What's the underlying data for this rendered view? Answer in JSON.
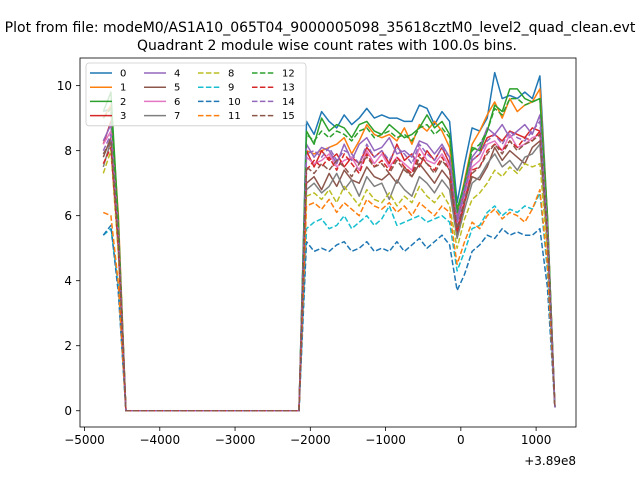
{
  "suptitle": "Plot from file: modeM0/AS1A10_065T04_9000005098_35618cztM0_level2_quad_clean.evt",
  "chart_data": {
    "type": "line",
    "title": "Quadrant 2 module wise count rates with 100.0s bins.",
    "xlabel": "",
    "ylabel": "",
    "offset_text": "+3.89e8",
    "xlim": [
      -5060,
      1530
    ],
    "ylim": [
      -0.5,
      10.85
    ],
    "xticks": [
      -5000,
      -4000,
      -3000,
      -2000,
      -1000,
      0,
      1000
    ],
    "xticklabels": [
      "−5000",
      "−4000",
      "−3000",
      "−2000",
      "−1000",
      "0",
      "1000"
    ],
    "yticks": [
      0,
      2,
      4,
      6,
      8,
      10
    ],
    "yticklabels": [
      "0",
      "2",
      "4",
      "6",
      "8",
      "10"
    ],
    "grid": false,
    "legend_position": "top-left",
    "legend_columns": 4,
    "x": [
      -4750,
      -4650,
      -4550,
      -4450,
      -2150,
      -2050,
      -1950,
      -1850,
      -1750,
      -1650,
      -1550,
      -1450,
      -1350,
      -1250,
      -1150,
      -1050,
      -950,
      -850,
      -750,
      -650,
      -550,
      -450,
      -350,
      -250,
      -150,
      -50,
      50,
      150,
      250,
      350,
      450,
      550,
      650,
      750,
      850,
      950,
      1050,
      1150,
      1250
    ],
    "series": [
      {
        "name": "0",
        "color": "#1f77b4",
        "dash": "solid",
        "values": [
          9.2,
          9.3,
          5.5,
          0,
          0,
          8.9,
          8.5,
          9.2,
          8.9,
          8.7,
          9.1,
          8.8,
          9.0,
          9.3,
          9.0,
          9.1,
          9.0,
          9.0,
          8.9,
          8.9,
          9.4,
          9.3,
          8.8,
          9.2,
          8.9,
          6.4,
          7.6,
          8.7,
          8.6,
          9.0,
          10.4,
          9.6,
          9.7,
          9.6,
          9.8,
          9.6,
          10.3,
          6.0,
          0.1
        ]
      },
      {
        "name": "1",
        "color": "#ff7f0e",
        "dash": "solid",
        "values": [
          9.0,
          9.4,
          6.0,
          0,
          0,
          8.0,
          7.9,
          8.0,
          8.1,
          8.2,
          8.4,
          7.9,
          8.3,
          8.8,
          8.5,
          8.4,
          8.5,
          8.3,
          8.7,
          8.2,
          8.8,
          8.6,
          8.9,
          8.6,
          8.1,
          6.0,
          7.1,
          8.2,
          8.6,
          9.1,
          9.5,
          9.0,
          9.6,
          9.2,
          9.4,
          9.5,
          9.9,
          6.0,
          0.1
        ]
      },
      {
        "name": "2",
        "color": "#2ca02c",
        "dash": "solid",
        "values": [
          9.2,
          9.8,
          5.8,
          0,
          0,
          8.6,
          8.2,
          9.0,
          8.6,
          8.8,
          8.7,
          8.4,
          8.8,
          8.9,
          8.6,
          8.5,
          8.8,
          8.6,
          8.4,
          8.5,
          8.7,
          9.1,
          8.7,
          8.9,
          8.5,
          6.2,
          7.0,
          8.1,
          8.0,
          8.6,
          9.4,
          9.2,
          9.9,
          9.9,
          9.6,
          9.5,
          9.6,
          6.0,
          0.1
        ]
      },
      {
        "name": "3",
        "color": "#d62728",
        "dash": "solid",
        "values": [
          8.2,
          8.9,
          5.6,
          0,
          0,
          8.0,
          7.5,
          8.0,
          7.7,
          7.9,
          7.5,
          7.8,
          7.6,
          8.1,
          7.8,
          8.0,
          7.6,
          8.2,
          7.7,
          7.9,
          7.5,
          8.0,
          7.7,
          8.1,
          7.6,
          5.8,
          6.8,
          7.7,
          7.9,
          8.4,
          8.5,
          8.3,
          8.6,
          8.5,
          8.4,
          8.7,
          8.6,
          5.5,
          0.1
        ]
      },
      {
        "name": "4",
        "color": "#9467bd",
        "dash": "solid",
        "values": [
          8.3,
          8.8,
          5.5,
          0,
          0,
          8.2,
          7.8,
          8.1,
          8.0,
          7.6,
          8.2,
          7.7,
          8.2,
          8.4,
          8.0,
          8.1,
          8.4,
          7.9,
          8.0,
          7.8,
          8.3,
          8.2,
          7.9,
          8.2,
          7.8,
          5.9,
          6.9,
          7.8,
          8.1,
          8.7,
          8.5,
          8.8,
          8.4,
          8.6,
          8.8,
          8.5,
          9.1,
          5.7,
          0.1
        ]
      },
      {
        "name": "5",
        "color": "#8c564b",
        "dash": "solid",
        "values": [
          7.8,
          8.4,
          5.1,
          0,
          0,
          7.0,
          7.2,
          6.8,
          7.3,
          6.9,
          7.4,
          7.1,
          7.0,
          7.5,
          7.2,
          7.1,
          7.3,
          7.0,
          7.5,
          7.2,
          7.6,
          7.3,
          7.0,
          7.4,
          7.1,
          5.4,
          6.4,
          7.2,
          7.1,
          7.5,
          8.1,
          7.7,
          8.0,
          7.8,
          7.6,
          8.1,
          8.3,
          5.2,
          0.1
        ]
      },
      {
        "name": "6",
        "color": "#e377c2",
        "dash": "solid",
        "values": [
          8.2,
          8.6,
          5.4,
          0,
          0,
          7.8,
          7.6,
          7.7,
          7.9,
          7.5,
          7.7,
          7.8,
          7.4,
          8.0,
          7.6,
          7.9,
          7.5,
          7.8,
          7.6,
          7.4,
          8.1,
          7.7,
          7.6,
          7.9,
          7.5,
          5.7,
          6.6,
          7.5,
          7.7,
          8.2,
          8.3,
          8.0,
          8.5,
          8.1,
          8.2,
          8.4,
          8.5,
          5.5,
          0.1
        ]
      },
      {
        "name": "7",
        "color": "#7f7f7f",
        "dash": "solid",
        "values": [
          7.5,
          8.3,
          5.0,
          0,
          0,
          6.8,
          7.0,
          6.7,
          6.9,
          7.3,
          6.8,
          7.1,
          6.6,
          7.2,
          6.9,
          7.0,
          6.5,
          7.1,
          6.8,
          6.6,
          7.2,
          7.0,
          6.7,
          7.1,
          6.8,
          5.3,
          6.2,
          7.0,
          7.2,
          7.6,
          7.9,
          7.5,
          7.7,
          7.4,
          7.8,
          7.9,
          8.2,
          5.1,
          0.1
        ]
      },
      {
        "name": "8",
        "color": "#bcbd22",
        "dash": "dashed",
        "values": [
          7.3,
          8.0,
          4.8,
          0,
          0,
          6.6,
          6.7,
          6.5,
          6.8,
          6.4,
          6.9,
          6.6,
          6.3,
          6.8,
          6.5,
          6.4,
          6.7,
          6.3,
          6.6,
          6.4,
          6.9,
          6.6,
          6.4,
          6.7,
          6.3,
          5.0,
          5.9,
          6.5,
          6.7,
          7.0,
          7.4,
          7.2,
          7.5,
          7.3,
          7.6,
          7.5,
          7.6,
          4.9,
          0.1
        ]
      },
      {
        "name": "9",
        "color": "#17becf",
        "dash": "dashed",
        "values": [
          5.4,
          5.6,
          3.8,
          0,
          0,
          5.6,
          5.8,
          5.9,
          5.6,
          5.7,
          6.0,
          5.6,
          5.8,
          6.0,
          5.7,
          5.9,
          6.3,
          5.7,
          5.8,
          5.9,
          6.0,
          5.8,
          5.9,
          6.0,
          5.8,
          4.3,
          4.9,
          5.6,
          5.7,
          6.1,
          6.3,
          6.0,
          6.2,
          6.1,
          6.3,
          6.2,
          6.7,
          4.3,
          0.1
        ]
      },
      {
        "name": "10",
        "color": "#1f77b4",
        "dash": "dashed",
        "values": [
          5.4,
          5.7,
          3.6,
          0,
          0,
          5.2,
          4.9,
          5.0,
          4.9,
          5.1,
          5.2,
          4.9,
          5.0,
          5.2,
          4.9,
          5.0,
          4.9,
          5.2,
          4.9,
          5.1,
          5.3,
          5.0,
          5.2,
          5.4,
          5.1,
          3.7,
          4.2,
          4.9,
          5.1,
          5.4,
          5.3,
          5.6,
          5.4,
          5.5,
          5.4,
          5.4,
          5.6,
          3.8,
          0.1
        ]
      },
      {
        "name": "11",
        "color": "#ff7f0e",
        "dash": "dashed",
        "values": [
          6.1,
          6.0,
          3.9,
          0,
          0,
          6.3,
          6.4,
          6.2,
          6.5,
          6.1,
          6.4,
          6.2,
          6.0,
          6.5,
          6.3,
          6.2,
          6.4,
          6.1,
          6.3,
          6.0,
          6.4,
          6.2,
          6.0,
          6.3,
          6.1,
          4.5,
          5.2,
          5.8,
          5.6,
          6.0,
          6.2,
          5.9,
          6.1,
          6.0,
          5.8,
          6.2,
          6.8,
          4.5,
          0.1
        ]
      },
      {
        "name": "12",
        "color": "#2ca02c",
        "dash": "dashed",
        "values": [
          9.0,
          9.3,
          5.7,
          0,
          0,
          8.5,
          8.3,
          8.6,
          8.4,
          8.6,
          8.5,
          8.3,
          8.6,
          8.7,
          8.4,
          8.5,
          8.6,
          8.4,
          8.5,
          8.3,
          8.7,
          8.8,
          8.5,
          8.7,
          8.4,
          6.1,
          7.0,
          8.0,
          8.2,
          8.6,
          9.3,
          9.1,
          9.6,
          9.6,
          9.4,
          9.5,
          9.6,
          5.9,
          0.1
        ]
      },
      {
        "name": "13",
        "color": "#d62728",
        "dash": "dashed",
        "values": [
          7.6,
          8.1,
          5.0,
          0,
          0,
          7.4,
          7.7,
          7.5,
          7.8,
          7.4,
          7.9,
          7.6,
          7.3,
          7.9,
          7.5,
          7.7,
          7.4,
          7.8,
          7.5,
          7.3,
          7.9,
          7.6,
          7.4,
          7.8,
          7.4,
          5.5,
          6.4,
          7.4,
          7.5,
          8.0,
          8.2,
          8.0,
          8.3,
          8.1,
          8.4,
          8.3,
          8.6,
          5.4,
          0.1
        ]
      },
      {
        "name": "14",
        "color": "#9467bd",
        "dash": "dashed",
        "values": [
          8.0,
          8.5,
          5.3,
          0,
          0,
          7.9,
          8.0,
          7.8,
          8.1,
          7.7,
          8.0,
          7.9,
          7.6,
          8.2,
          7.8,
          8.0,
          7.7,
          8.1,
          7.9,
          7.6,
          8.2,
          7.9,
          7.7,
          8.1,
          7.8,
          5.8,
          6.7,
          7.7,
          7.9,
          8.3,
          8.5,
          8.2,
          8.6,
          8.4,
          8.3,
          8.6,
          8.9,
          5.6,
          0.1
        ]
      },
      {
        "name": "15",
        "color": "#8c564b",
        "dash": "dashed",
        "values": [
          7.9,
          8.3,
          5.2,
          0,
          0,
          7.5,
          7.3,
          7.6,
          7.4,
          7.7,
          7.5,
          7.2,
          7.6,
          7.8,
          7.5,
          7.6,
          7.3,
          7.7,
          7.4,
          7.2,
          7.8,
          7.6,
          7.3,
          7.7,
          7.4,
          5.6,
          6.5,
          7.3,
          7.5,
          7.9,
          8.2,
          7.9,
          8.3,
          8.0,
          8.2,
          8.3,
          8.5,
          5.4,
          0.1
        ]
      }
    ]
  }
}
